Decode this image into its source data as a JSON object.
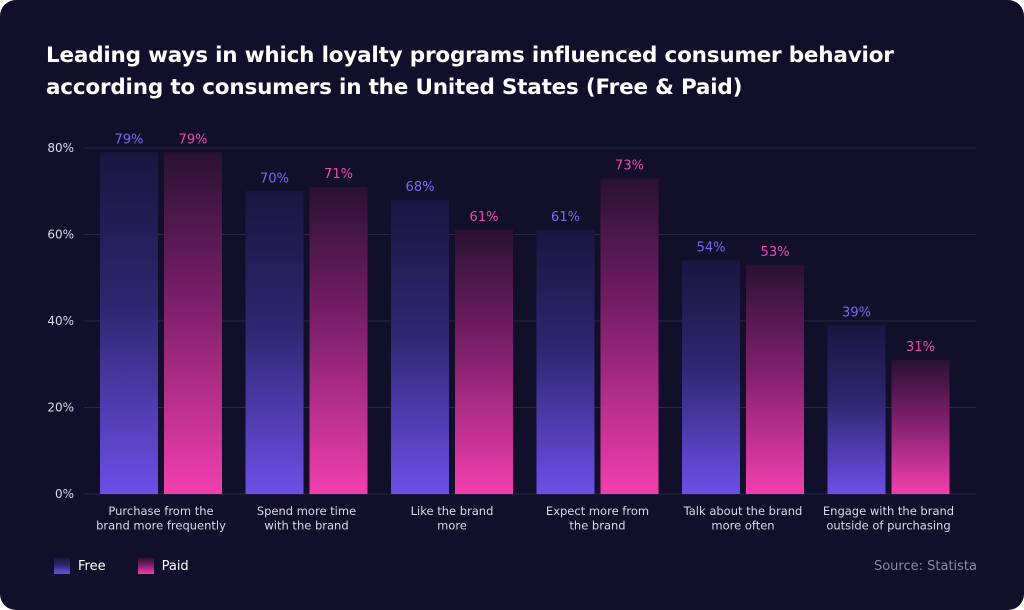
{
  "chart_data": {
    "type": "bar",
    "title": "Leading ways in which loyalty programs influenced consumer behavior according to consumers in the United States (Free & Paid)",
    "categories": [
      [
        "Purchase from the",
        "brand more frequently"
      ],
      [
        "Spend more time",
        "with the brand"
      ],
      [
        "Like the brand",
        "more"
      ],
      [
        "Expect more from",
        "the brand"
      ],
      [
        "Talk about the brand",
        "more often"
      ],
      [
        "Engage with the brand",
        "outside of purchasing"
      ]
    ],
    "series": [
      {
        "name": "Free",
        "values": [
          79,
          70,
          68,
          61,
          54,
          39
        ],
        "labels": [
          "79%",
          "70%",
          "68%",
          "61%",
          "54%",
          "39%"
        ]
      },
      {
        "name": "Paid",
        "values": [
          79,
          71,
          61,
          73,
          53,
          31
        ],
        "labels": [
          "79%",
          "71%",
          "61%",
          "73%",
          "53%",
          "31%"
        ]
      }
    ],
    "ylim": [
      0,
      80
    ],
    "yticks": [
      0,
      20,
      40,
      60,
      80
    ],
    "ytick_labels": [
      "0%",
      "20%",
      "40%",
      "60%",
      "80%"
    ],
    "grid": true,
    "legend_position": "bottom-left",
    "colors": {
      "free": "#6b4ee6",
      "free_label": "#7d67f0",
      "paid": "#f03ea8",
      "paid_label": "#ee4ab2",
      "background": "#120f2b",
      "grid": "#2a2747",
      "text": "#ffffff",
      "tick_text": "#d9d7ec",
      "source": "#8a87a8"
    }
  },
  "legend": {
    "free": "Free",
    "paid": "Paid"
  },
  "source": "Source: Statista"
}
